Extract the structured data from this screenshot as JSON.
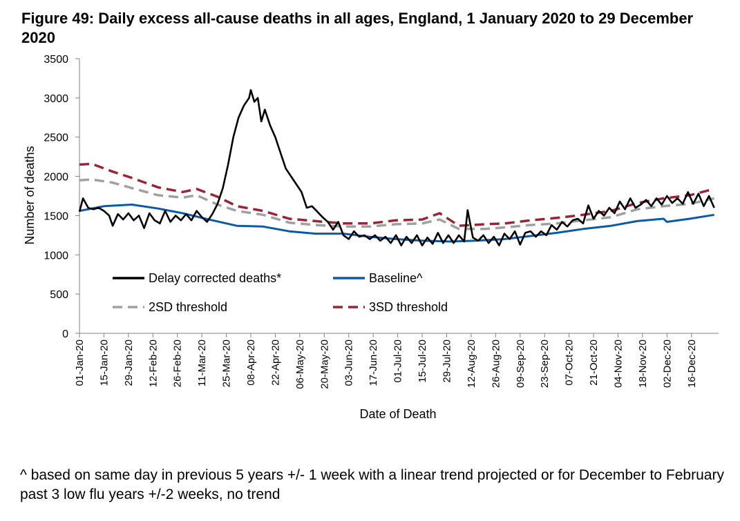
{
  "chart_data": {
    "type": "line",
    "title": "Figure 49: Daily excess all-cause deaths in all ages, England, 1 January 2020 to 29 December 2020",
    "xlabel": "Date of Death",
    "ylabel": "Number of deaths",
    "ylim": [
      0,
      3500
    ],
    "yticks": [
      0,
      500,
      1000,
      1500,
      2000,
      2500,
      3000,
      3500
    ],
    "x_start": "2020-01-01",
    "x_end": "2020-12-29",
    "x_tick_labels": [
      "01-Jan-20",
      "15-Jan-20",
      "29-Jan-20",
      "12-Feb-20",
      "26-Feb-20",
      "11-Mar-20",
      "25-Mar-20",
      "08-Apr-20",
      "22-Apr-20",
      "06-May-20",
      "20-May-20",
      "03-Jun-20",
      "17-Jun-20",
      "01-Jul-20",
      "15-Jul-20",
      "29-Jul-20",
      "12-Aug-20",
      "26-Aug-20",
      "09-Sep-20",
      "23-Sep-20",
      "07-Oct-20",
      "21-Oct-20",
      "04-Nov-20",
      "18-Nov-20",
      "02-Dec-20",
      "16-Dec-20"
    ],
    "grid": false,
    "legend_position": "bottom-left-inside",
    "series": [
      {
        "name": "Delay corrected deaths*",
        "color": "#000000",
        "style": "solid",
        "points": [
          [
            "2020-01-01",
            1550
          ],
          [
            "2020-01-03",
            1720
          ],
          [
            "2020-01-06",
            1600
          ],
          [
            "2020-01-09",
            1580
          ],
          [
            "2020-01-12",
            1600
          ],
          [
            "2020-01-15",
            1560
          ],
          [
            "2020-01-18",
            1500
          ],
          [
            "2020-01-20",
            1370
          ],
          [
            "2020-01-23",
            1520
          ],
          [
            "2020-01-26",
            1450
          ],
          [
            "2020-01-29",
            1530
          ],
          [
            "2020-02-01",
            1440
          ],
          [
            "2020-02-04",
            1500
          ],
          [
            "2020-02-07",
            1340
          ],
          [
            "2020-02-10",
            1530
          ],
          [
            "2020-02-13",
            1440
          ],
          [
            "2020-02-16",
            1400
          ],
          [
            "2020-02-19",
            1560
          ],
          [
            "2020-02-22",
            1420
          ],
          [
            "2020-02-25",
            1500
          ],
          [
            "2020-02-28",
            1440
          ],
          [
            "2020-03-02",
            1520
          ],
          [
            "2020-03-05",
            1440
          ],
          [
            "2020-03-08",
            1560
          ],
          [
            "2020-03-11",
            1480
          ],
          [
            "2020-03-14",
            1420
          ],
          [
            "2020-03-17",
            1520
          ],
          [
            "2020-03-20",
            1650
          ],
          [
            "2020-03-23",
            1850
          ],
          [
            "2020-03-26",
            2150
          ],
          [
            "2020-03-29",
            2500
          ],
          [
            "2020-04-01",
            2750
          ],
          [
            "2020-04-04",
            2900
          ],
          [
            "2020-04-07",
            3000
          ],
          [
            "2020-04-08",
            3100
          ],
          [
            "2020-04-10",
            2950
          ],
          [
            "2020-04-12",
            3000
          ],
          [
            "2020-04-14",
            2700
          ],
          [
            "2020-04-16",
            2850
          ],
          [
            "2020-04-19",
            2650
          ],
          [
            "2020-04-22",
            2500
          ],
          [
            "2020-04-25",
            2300
          ],
          [
            "2020-04-28",
            2100
          ],
          [
            "2020-05-01",
            2000
          ],
          [
            "2020-05-04",
            1900
          ],
          [
            "2020-05-07",
            1800
          ],
          [
            "2020-05-10",
            1600
          ],
          [
            "2020-05-13",
            1620
          ],
          [
            "2020-05-16",
            1550
          ],
          [
            "2020-05-19",
            1480
          ],
          [
            "2020-05-22",
            1420
          ],
          [
            "2020-05-25",
            1320
          ],
          [
            "2020-05-28",
            1420
          ],
          [
            "2020-05-31",
            1250
          ],
          [
            "2020-06-03",
            1200
          ],
          [
            "2020-06-06",
            1300
          ],
          [
            "2020-06-09",
            1230
          ],
          [
            "2020-06-12",
            1250
          ],
          [
            "2020-06-15",
            1200
          ],
          [
            "2020-06-18",
            1250
          ],
          [
            "2020-06-21",
            1180
          ],
          [
            "2020-06-24",
            1230
          ],
          [
            "2020-06-27",
            1150
          ],
          [
            "2020-06-30",
            1250
          ],
          [
            "2020-07-03",
            1120
          ],
          [
            "2020-07-06",
            1230
          ],
          [
            "2020-07-09",
            1150
          ],
          [
            "2020-07-12",
            1250
          ],
          [
            "2020-07-15",
            1120
          ],
          [
            "2020-07-18",
            1220
          ],
          [
            "2020-07-21",
            1140
          ],
          [
            "2020-07-24",
            1280
          ],
          [
            "2020-07-27",
            1150
          ],
          [
            "2020-07-30",
            1250
          ],
          [
            "2020-08-02",
            1150
          ],
          [
            "2020-08-05",
            1250
          ],
          [
            "2020-08-08",
            1170
          ],
          [
            "2020-08-10",
            1570
          ],
          [
            "2020-08-13",
            1220
          ],
          [
            "2020-08-16",
            1180
          ],
          [
            "2020-08-19",
            1250
          ],
          [
            "2020-08-22",
            1150
          ],
          [
            "2020-08-25",
            1230
          ],
          [
            "2020-08-28",
            1120
          ],
          [
            "2020-08-31",
            1270
          ],
          [
            "2020-09-03",
            1200
          ],
          [
            "2020-09-06",
            1300
          ],
          [
            "2020-09-09",
            1130
          ],
          [
            "2020-09-12",
            1280
          ],
          [
            "2020-09-15",
            1300
          ],
          [
            "2020-09-18",
            1230
          ],
          [
            "2020-09-21",
            1300
          ],
          [
            "2020-09-24",
            1250
          ],
          [
            "2020-09-27",
            1380
          ],
          [
            "2020-09-30",
            1320
          ],
          [
            "2020-10-03",
            1420
          ],
          [
            "2020-10-06",
            1360
          ],
          [
            "2020-10-09",
            1440
          ],
          [
            "2020-10-12",
            1460
          ],
          [
            "2020-10-15",
            1400
          ],
          [
            "2020-10-18",
            1630
          ],
          [
            "2020-10-21",
            1460
          ],
          [
            "2020-10-24",
            1560
          ],
          [
            "2020-10-27",
            1500
          ],
          [
            "2020-10-30",
            1600
          ],
          [
            "2020-11-02",
            1530
          ],
          [
            "2020-11-05",
            1680
          ],
          [
            "2020-11-08",
            1580
          ],
          [
            "2020-11-11",
            1720
          ],
          [
            "2020-11-14",
            1600
          ],
          [
            "2020-11-17",
            1640
          ],
          [
            "2020-11-20",
            1700
          ],
          [
            "2020-11-23",
            1620
          ],
          [
            "2020-11-26",
            1720
          ],
          [
            "2020-11-29",
            1640
          ],
          [
            "2020-12-02",
            1750
          ],
          [
            "2020-12-05",
            1660
          ],
          [
            "2020-12-08",
            1720
          ],
          [
            "2020-12-11",
            1650
          ],
          [
            "2020-12-14",
            1800
          ],
          [
            "2020-12-17",
            1650
          ],
          [
            "2020-12-20",
            1780
          ],
          [
            "2020-12-23",
            1620
          ],
          [
            "2020-12-26",
            1750
          ],
          [
            "2020-12-29",
            1600
          ]
        ]
      },
      {
        "name": "Baseline^",
        "color": "#0a5aa8",
        "style": "solid",
        "points": [
          [
            "2020-01-01",
            1560
          ],
          [
            "2020-01-15",
            1620
          ],
          [
            "2020-01-31",
            1640
          ],
          [
            "2020-02-15",
            1590
          ],
          [
            "2020-02-29",
            1530
          ],
          [
            "2020-03-15",
            1450
          ],
          [
            "2020-03-31",
            1370
          ],
          [
            "2020-04-15",
            1360
          ],
          [
            "2020-04-30",
            1300
          ],
          [
            "2020-05-15",
            1270
          ],
          [
            "2020-05-31",
            1270
          ],
          [
            "2020-06-15",
            1230
          ],
          [
            "2020-06-30",
            1200
          ],
          [
            "2020-07-15",
            1180
          ],
          [
            "2020-07-31",
            1170
          ],
          [
            "2020-08-15",
            1180
          ],
          [
            "2020-08-31",
            1200
          ],
          [
            "2020-09-15",
            1240
          ],
          [
            "2020-09-30",
            1280
          ],
          [
            "2020-10-15",
            1330
          ],
          [
            "2020-10-31",
            1370
          ],
          [
            "2020-11-15",
            1430
          ],
          [
            "2020-11-30",
            1460
          ],
          [
            "2020-12-02",
            1420
          ],
          [
            "2020-12-15",
            1460
          ],
          [
            "2020-12-29",
            1510
          ]
        ]
      },
      {
        "name": "2SD threshold",
        "color": "#a0a0a0",
        "style": "dashed",
        "points": [
          [
            "2020-01-01",
            1950
          ],
          [
            "2020-01-08",
            1960
          ],
          [
            "2020-01-20",
            1920
          ],
          [
            "2020-01-31",
            1850
          ],
          [
            "2020-02-15",
            1760
          ],
          [
            "2020-02-29",
            1730
          ],
          [
            "2020-03-08",
            1760
          ],
          [
            "2020-03-20",
            1640
          ],
          [
            "2020-03-31",
            1560
          ],
          [
            "2020-04-15",
            1510
          ],
          [
            "2020-04-30",
            1410
          ],
          [
            "2020-05-15",
            1380
          ],
          [
            "2020-05-31",
            1360
          ],
          [
            "2020-06-15",
            1360
          ],
          [
            "2020-06-30",
            1390
          ],
          [
            "2020-07-15",
            1400
          ],
          [
            "2020-07-25",
            1450
          ],
          [
            "2020-08-05",
            1330
          ],
          [
            "2020-08-20",
            1330
          ],
          [
            "2020-08-31",
            1350
          ],
          [
            "2020-09-15",
            1380
          ],
          [
            "2020-09-30",
            1400
          ],
          [
            "2020-10-15",
            1440
          ],
          [
            "2020-10-31",
            1480
          ],
          [
            "2020-11-15",
            1580
          ],
          [
            "2020-11-30",
            1620
          ],
          [
            "2020-12-15",
            1650
          ],
          [
            "2020-12-29",
            1720
          ]
        ]
      },
      {
        "name": "3SD threshold",
        "color": "#9b2335",
        "style": "dashed",
        "points": [
          [
            "2020-01-01",
            2150
          ],
          [
            "2020-01-08",
            2160
          ],
          [
            "2020-01-20",
            2060
          ],
          [
            "2020-01-31",
            1980
          ],
          [
            "2020-02-15",
            1860
          ],
          [
            "2020-02-29",
            1800
          ],
          [
            "2020-03-08",
            1840
          ],
          [
            "2020-03-20",
            1740
          ],
          [
            "2020-03-31",
            1620
          ],
          [
            "2020-04-15",
            1560
          ],
          [
            "2020-04-30",
            1460
          ],
          [
            "2020-05-15",
            1430
          ],
          [
            "2020-05-31",
            1400
          ],
          [
            "2020-06-15",
            1400
          ],
          [
            "2020-06-30",
            1440
          ],
          [
            "2020-07-15",
            1450
          ],
          [
            "2020-07-25",
            1530
          ],
          [
            "2020-08-05",
            1370
          ],
          [
            "2020-08-20",
            1390
          ],
          [
            "2020-08-31",
            1400
          ],
          [
            "2020-09-15",
            1440
          ],
          [
            "2020-09-30",
            1470
          ],
          [
            "2020-10-15",
            1510
          ],
          [
            "2020-10-31",
            1560
          ],
          [
            "2020-11-15",
            1660
          ],
          [
            "2020-11-30",
            1720
          ],
          [
            "2020-12-15",
            1760
          ],
          [
            "2020-12-29",
            1840
          ]
        ]
      }
    ]
  },
  "footnote": "^ based on same day in previous 5 years +/- 1 week with a linear trend projected or for December to February past 3 low flu years +/-2 weeks, no trend"
}
